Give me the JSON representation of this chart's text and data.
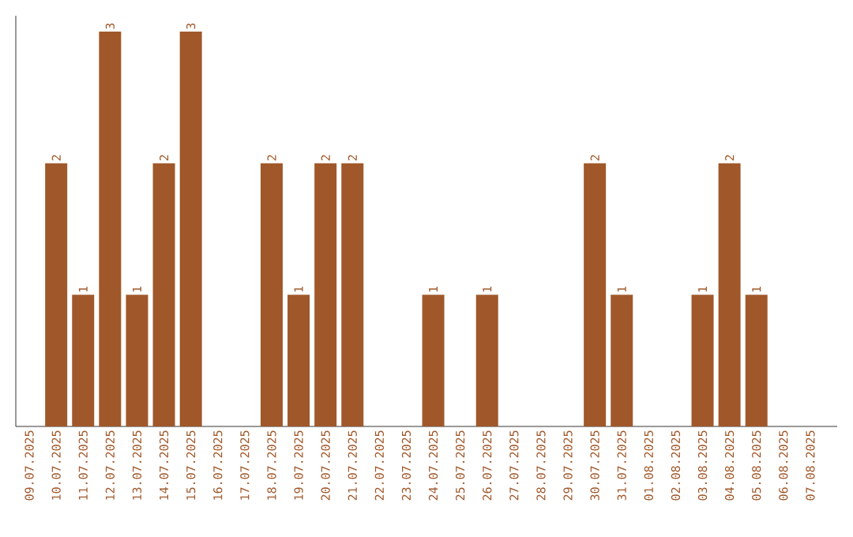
{
  "chart_data": {
    "type": "bar",
    "categories": [
      "09.07.2025",
      "10.07.2025",
      "11.07.2025",
      "12.07.2025",
      "13.07.2025",
      "14.07.2025",
      "15.07.2025",
      "16.07.2025",
      "17.07.2025",
      "18.07.2025",
      "19.07.2025",
      "20.07.2025",
      "21.07.2025",
      "22.07.2025",
      "23.07.2025",
      "24.07.2025",
      "25.07.2025",
      "26.07.2025",
      "27.07.2025",
      "28.07.2025",
      "29.07.2025",
      "30.07.2025",
      "31.07.2025",
      "01.08.2025",
      "02.08.2025",
      "03.08.2025",
      "04.08.2025",
      "05.08.2025",
      "06.08.2025",
      "07.08.2025"
    ],
    "values": [
      0,
      2,
      1,
      3,
      1,
      2,
      3,
      0,
      0,
      2,
      1,
      2,
      2,
      0,
      0,
      1,
      0,
      1,
      0,
      0,
      0,
      2,
      1,
      0,
      0,
      1,
      2,
      1,
      0,
      0
    ],
    "value_labels": [
      null,
      "2",
      "1",
      "3",
      "1",
      "2",
      "3",
      null,
      null,
      "2",
      "1",
      "2",
      "2",
      null,
      null,
      "1",
      null,
      "1",
      null,
      null,
      null,
      "2",
      "1",
      null,
      null,
      "1",
      "2",
      "1",
      null,
      null
    ],
    "color": "#a0582a",
    "ylim": [
      0,
      3.12
    ],
    "tick_labels": "x",
    "grid": false
  }
}
